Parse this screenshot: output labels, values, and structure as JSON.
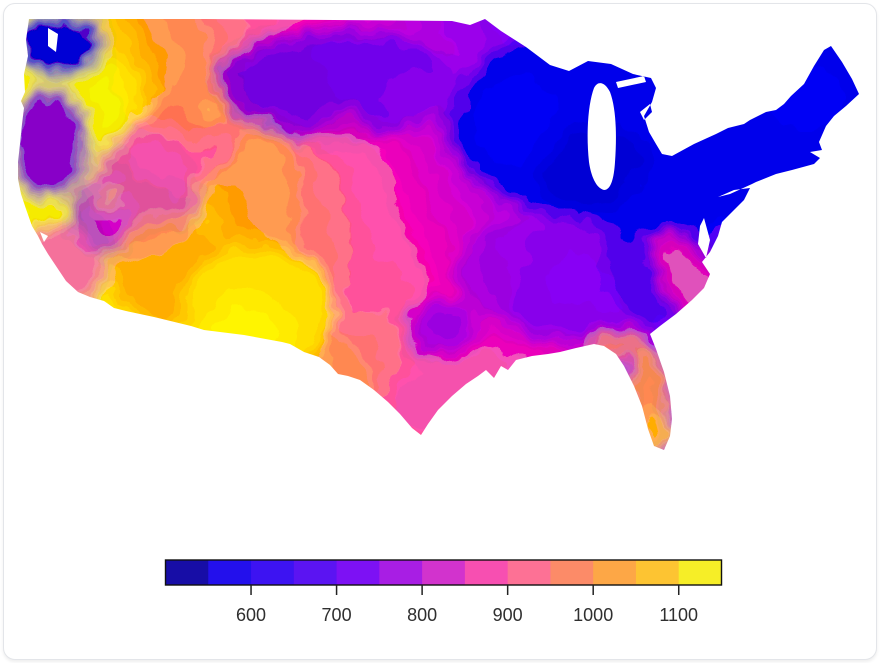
{
  "card": {
    "background": "#ffffff",
    "border_color": "#e3e5e9"
  },
  "map": {
    "land_base_low": "#2310ec",
    "regions": {
      "base_gradient_blue_end": "#2111e8",
      "grad_blue2": "#3d13f2",
      "grad_violet_blue": "#5b14f2",
      "grad_violet": "#7d11f4",
      "grad_purple": "#a81ee4",
      "grad_magenta": "#d233cd",
      "grad_pink": "#f74fb1",
      "grad_salmon_pink": "#fd7195",
      "grad_salmon": "#fc8b68",
      "grad_orange": "#fda746",
      "grad_yellow": "#f6ee27",
      "northeast_great_lakes_blue": "#2310ea",
      "midwest_navy_patch": "#1a0cc2",
      "new_england_blue": "#2f12ee",
      "appalachia_blue": "#3a14ea",
      "upper_midwest_violet": "#5f16f0",
      "northern_plains_violet": "#6317f0",
      "dakotas_magenta": "#a62ae2",
      "washington_puget_blue": "#2212da",
      "oregon_inland_violet": "#7215e8",
      "inland_northwest_salmon": "#fc8460",
      "inland_northwest_yellow_spot": "#fdce30",
      "california_coast_pink": "#f05ebc",
      "sierra_violet": "#8a16ee",
      "socal_amber_spot": "#fdc43a",
      "great_basin_magenta": "#d83bd2",
      "arizona_orange": "#fca04e",
      "rockies_orange_band": "#fca44c",
      "rockies_salmon_band": "#fc7e77",
      "plains_pink_band": "#f85fab",
      "southwest_yellow": "#f8e32b",
      "southwest_yellow_core": "#ffee3d",
      "central_texas_purple": "#8b20f0",
      "south_texas_pink": "#f455b2",
      "gulf_coast_pink": "#f155b2",
      "deep_south_violet": "#7d1cf0",
      "southeast_coast_pink": "#f75cb0",
      "florida_panhandle_salmon": "#fc8b68",
      "florida_peninsula_orange": "#fc9c50",
      "florida_south_amber": "#fdc43c"
    }
  },
  "colorbar": {
    "min": 500,
    "max": 1150,
    "orientation": "horizontal",
    "segment_colors": [
      "#170da6",
      "#2310ec",
      "#3d13f2",
      "#5b14f2",
      "#7d11f4",
      "#a81ee4",
      "#d233cd",
      "#f74fb1",
      "#fd7195",
      "#fc8b68",
      "#fda746",
      "#fdc432",
      "#f6ee27"
    ],
    "frame_color": "#111111",
    "tick_color": "#222222",
    "label_color": "#2f2f2f",
    "ticks": [
      {
        "value": 600,
        "label": "600"
      },
      {
        "value": 700,
        "label": "700"
      },
      {
        "value": 800,
        "label": "800"
      },
      {
        "value": 900,
        "label": "900"
      },
      {
        "value": 1000,
        "label": "1000"
      },
      {
        "value": 1100,
        "label": "1100"
      }
    ]
  },
  "chart_data": {
    "type": "heatmap",
    "subtype": "choropleth-map",
    "title": "",
    "region_shown": "Contiguous United States (county-level)",
    "legend": {
      "position": "bottom",
      "orientation": "horizontal",
      "range": [
        500,
        1150
      ],
      "tick_labels": [
        "600",
        "700",
        "800",
        "900",
        "1000",
        "1100"
      ],
      "n_discrete_segments": 13,
      "palette": [
        "#170da6",
        "#2310ec",
        "#3d13f2",
        "#5b14f2",
        "#7d11f4",
        "#a81ee4",
        "#d233cd",
        "#f74fb1",
        "#fd7195",
        "#fc8b68",
        "#fda746",
        "#fdc432",
        "#f6ee27"
      ]
    },
    "regions_approx_values": {
      "pacific_northwest_puget_sound": 580,
      "great_lakes_upper_midwest": 590,
      "northeast_new_england": 620,
      "appalachians_ohio_valley": 640,
      "northern_plains_montana_dakotas": 720,
      "central_plains": 800,
      "inland_northwest_rockies_warm_patch": 960,
      "great_basin_nevada_utah": 830,
      "california_coast": 880,
      "arizona": 1030,
      "colorado_rockies_east_slope": 980,
      "new_mexico_west_texas_maximum": 1130,
      "central_texas": 760,
      "south_texas_gulf": 890,
      "gulf_coast_louisiana": 880,
      "deep_south_interior": 740,
      "southeast_atlantic_coast": 870,
      "florida_panhandle": 960,
      "florida_peninsula": 1020,
      "florida_south": 1080
    }
  }
}
